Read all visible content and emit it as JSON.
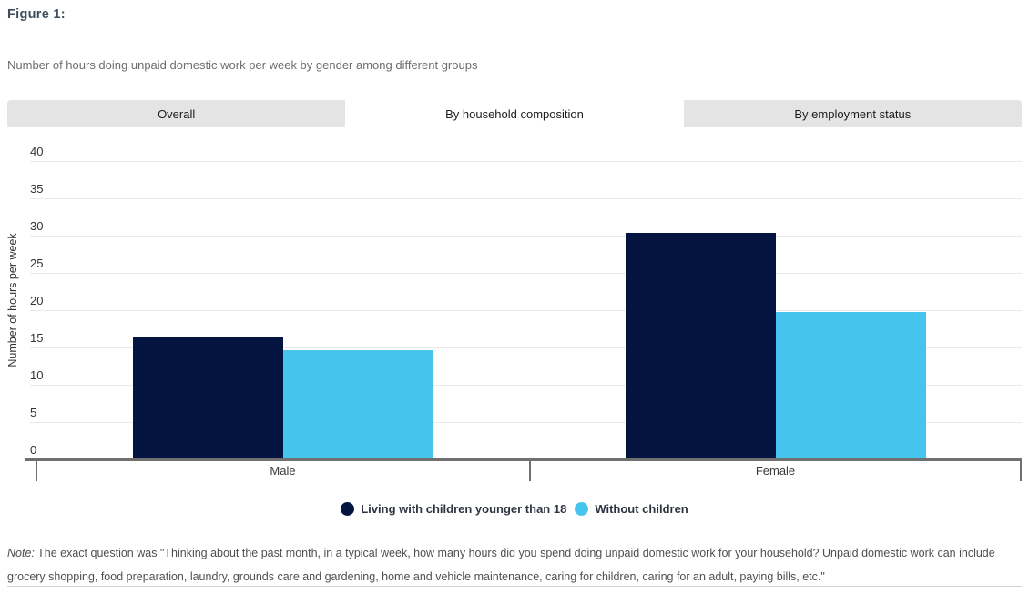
{
  "header": {
    "figure_label": "Figure 1:",
    "subtitle": "Number of hours doing unpaid domestic work per week by gender among different groups"
  },
  "tabs": [
    {
      "label": "Overall",
      "active": false
    },
    {
      "label": "By household composition",
      "active": true
    },
    {
      "label": "By employment status",
      "active": false
    }
  ],
  "chart_data": {
    "type": "bar",
    "title": "Number of hours doing unpaid domestic work per week by gender among different groups",
    "categories": [
      "Male",
      "Female"
    ],
    "series": [
      {
        "name": "Living with children younger than 18",
        "color": "#041441",
        "values": [
          16.5,
          30.5
        ]
      },
      {
        "name": "Without children",
        "color": "#45c5ee",
        "values": [
          14.8,
          19.9
        ]
      }
    ],
    "xlabel": "",
    "ylabel": "Number of hours per week",
    "ylim": [
      0,
      40
    ],
    "ytick_step": 5,
    "grid": true,
    "legend_position": "bottom"
  },
  "note": {
    "prefix": "Note:",
    "body": " The exact question was \"Thinking about the past month, in a typical week, how many hours did you spend doing unpaid domestic work for your household? Unpaid domestic work can include grocery shopping, food preparation, laundry, grounds care and gardening, home and vehicle maintenance, caring for children, caring for an adult, paying bills, etc.\""
  },
  "colors": {
    "navy": "#041441",
    "light_blue": "#45c5ee",
    "tab_background": "#e4e4e4",
    "gridline": "#eaeaea",
    "axis": "#707070",
    "title_text": "#3e4d5c"
  }
}
